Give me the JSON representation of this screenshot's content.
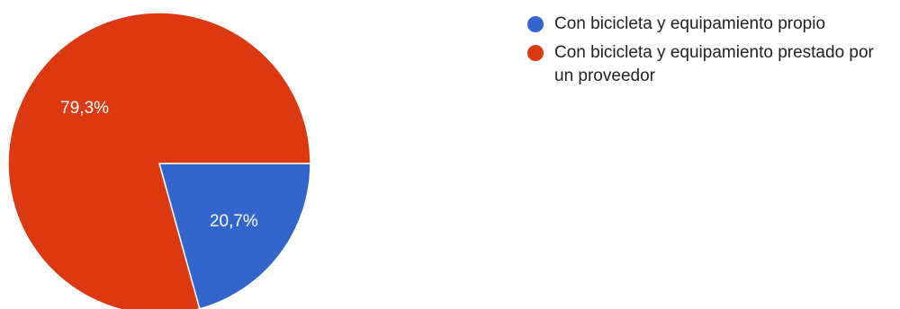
{
  "chart_data": {
    "type": "pie",
    "series": [
      {
        "slices": [
          {
            "label": "Con bicicleta y equipamiento propio",
            "value": 20.7,
            "value_label": "20,7%",
            "color": "#3366cc"
          },
          {
            "label": "Con bicicleta y equipamiento prestado por un proveedor",
            "value": 79.3,
            "value_label": "79,3%",
            "color": "#dc3912"
          }
        ]
      }
    ],
    "legend_position": "right",
    "start_angle": "3 o'clock, clockwise"
  }
}
